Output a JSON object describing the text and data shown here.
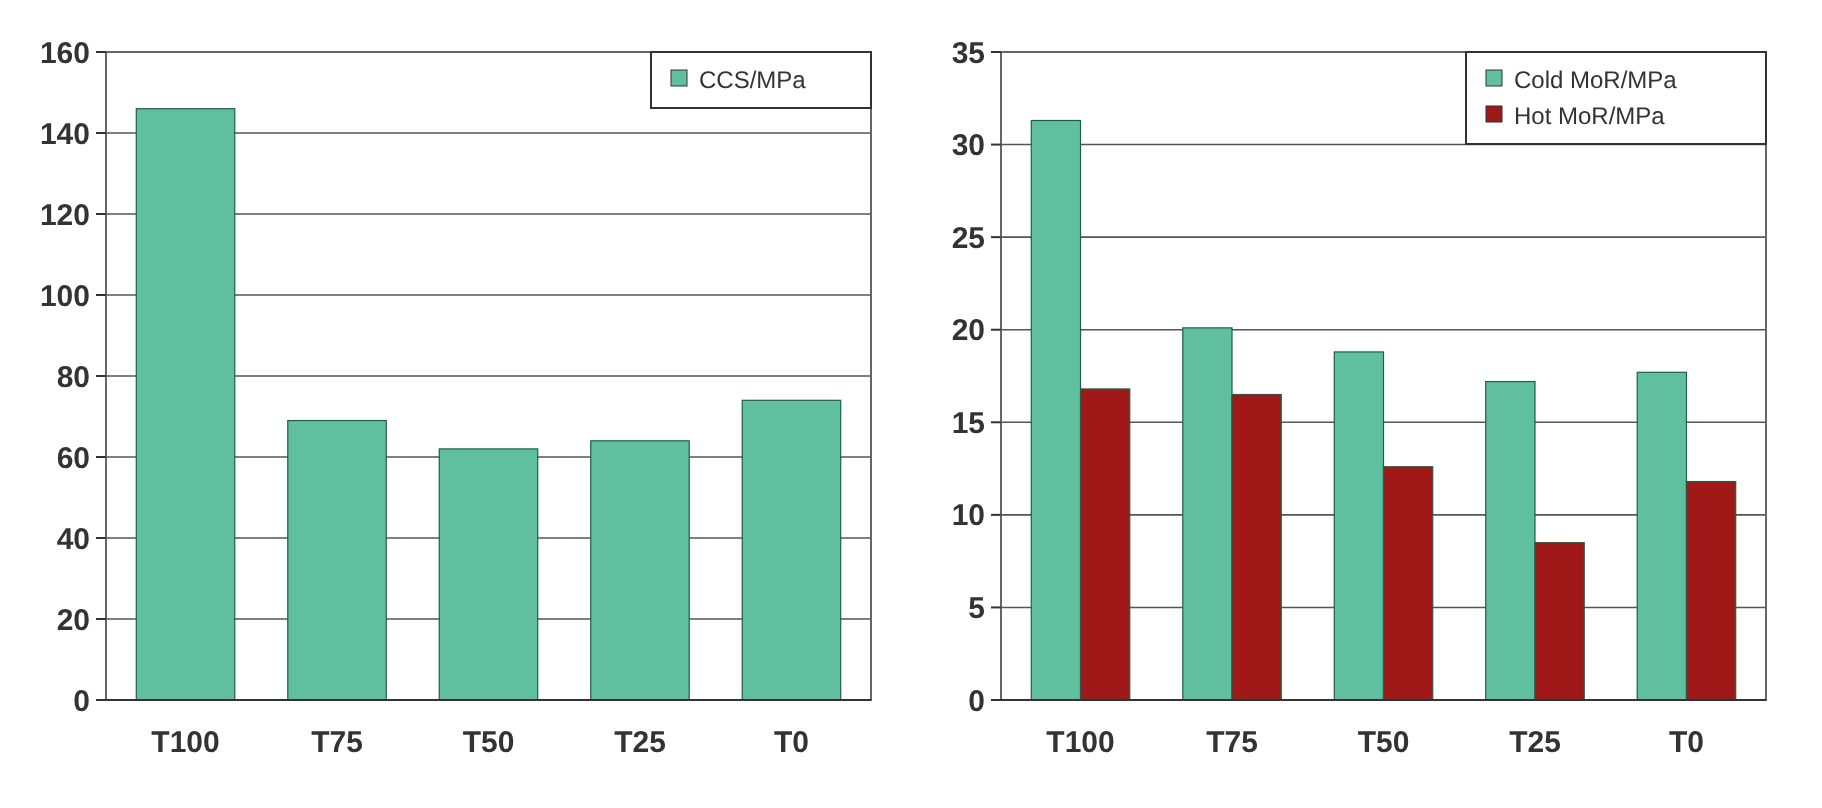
{
  "chart_data": [
    {
      "type": "bar",
      "categories": [
        "T100",
        "T75",
        "T50",
        "T25",
        "T0"
      ],
      "series": [
        {
          "name": "CCS/MPa",
          "color": "#5fbf9f",
          "values": [
            146,
            69,
            62,
            64,
            74
          ]
        }
      ],
      "ylim": [
        0,
        160
      ],
      "yticks": [
        0,
        20,
        40,
        60,
        80,
        100,
        120,
        140,
        160
      ],
      "grid": "y",
      "legend": "top right"
    },
    {
      "type": "bar",
      "categories": [
        "T100",
        "T75",
        "T50",
        "T25",
        "T0"
      ],
      "series": [
        {
          "name": "Cold MoR/MPa",
          "color": "#5fbf9f",
          "values": [
            31.3,
            20.1,
            18.8,
            17.2,
            17.7
          ]
        },
        {
          "name": "Hot MoR/MPa",
          "color": "#a01818",
          "values": [
            16.8,
            16.5,
            12.6,
            8.5,
            11.8
          ]
        }
      ],
      "ylim": [
        0,
        35
      ],
      "yticks": [
        0,
        5,
        10,
        15,
        20,
        25,
        30,
        35
      ],
      "grid": "y",
      "legend": "top right"
    }
  ]
}
